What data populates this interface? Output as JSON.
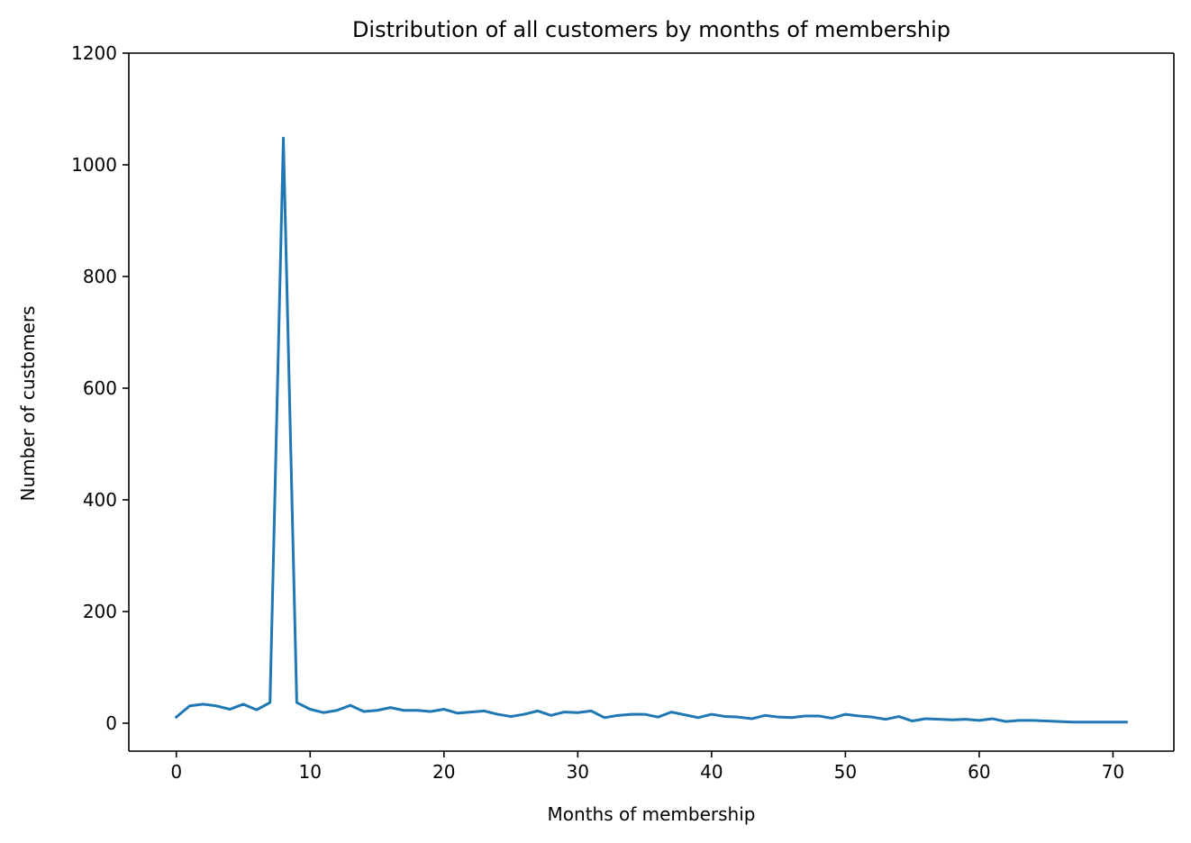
{
  "chart_data": {
    "type": "line",
    "title": "Distribution of all customers by months of membership",
    "xlabel": "Months of membership",
    "ylabel": "Number of customers",
    "xlim": [
      -3.55,
      74.55
    ],
    "ylim": [
      -50,
      1200
    ],
    "xticks": [
      0,
      10,
      20,
      30,
      40,
      50,
      60,
      70
    ],
    "yticks": [
      0,
      200,
      400,
      600,
      800,
      1000,
      1200
    ],
    "grid": false,
    "legend": "none",
    "series": [
      {
        "color": "#1f77b4",
        "x": [
          0,
          1,
          2,
          3,
          4,
          5,
          6,
          7,
          8,
          9,
          10,
          11,
          12,
          13,
          14,
          15,
          16,
          17,
          18,
          19,
          20,
          21,
          22,
          23,
          24,
          25,
          26,
          27,
          28,
          29,
          30,
          31,
          32,
          33,
          34,
          35,
          36,
          37,
          38,
          39,
          40,
          41,
          42,
          43,
          44,
          45,
          46,
          47,
          48,
          49,
          50,
          51,
          52,
          53,
          54,
          55,
          56,
          57,
          58,
          59,
          60,
          61,
          62,
          63,
          64,
          65,
          66,
          67,
          68,
          69,
          70,
          71
        ],
        "values": [
          11,
          31,
          34,
          31,
          25,
          34,
          24,
          37,
          1048,
          37,
          25,
          19,
          23,
          32,
          21,
          23,
          28,
          23,
          23,
          21,
          25,
          18,
          20,
          22,
          16,
          12,
          16,
          22,
          14,
          20,
          19,
          22,
          10,
          14,
          16,
          16,
          11,
          20,
          15,
          10,
          16,
          12,
          11,
          8,
          14,
          11,
          10,
          13,
          13,
          9,
          16,
          13,
          11,
          7,
          12,
          4,
          8,
          7,
          6,
          7,
          5,
          8,
          3,
          5,
          5,
          4,
          3,
          2,
          2,
          2,
          2,
          2
        ]
      }
    ]
  }
}
